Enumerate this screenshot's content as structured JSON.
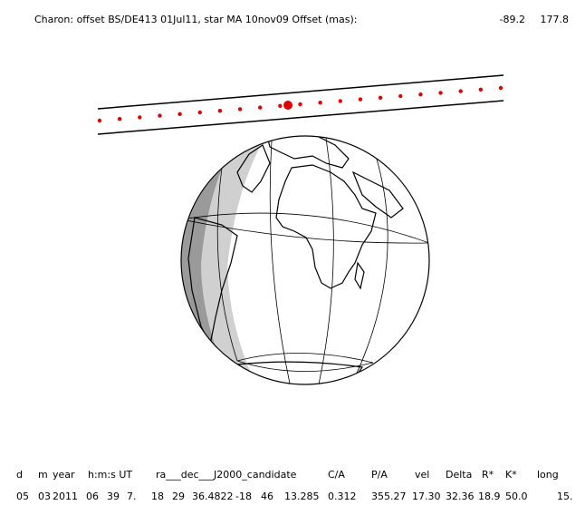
{
  "header": {
    "title": "Charon: offset BS/DE413 01Jul11, star MA 10nov09  Offset (mas):",
    "offset_x": -89.2,
    "offset_y": 177.8
  },
  "table": {
    "columns": [
      "d",
      "m",
      "year",
      "h:m:s UT",
      "ra___dec___J2000_candidate",
      "C/A",
      "P/A",
      "vel",
      "Delta",
      "R*",
      "K*",
      "long"
    ],
    "rows": [
      [
        "05",
        "03",
        "2011",
        "06",
        "39",
        "7.",
        "18",
        "29",
        "36.4822",
        "-18",
        "46",
        "13.285",
        "0.312",
        "355.27",
        "17.30",
        "32.36",
        "18.9",
        "50.0",
        "15."
      ]
    ]
  }
}
